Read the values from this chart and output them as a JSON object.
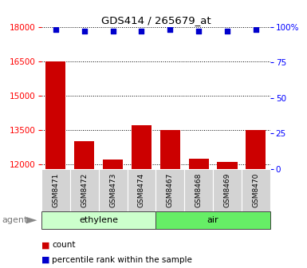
{
  "title": "GDS414 / 265679_at",
  "samples": [
    "GSM8471",
    "GSM8472",
    "GSM8473",
    "GSM8474",
    "GSM8467",
    "GSM8468",
    "GSM8469",
    "GSM8470"
  ],
  "counts": [
    16500,
    13000,
    12200,
    13700,
    13500,
    12250,
    12100,
    13500
  ],
  "percentile_ranks": [
    98,
    97,
    97,
    97,
    98,
    97,
    97,
    98
  ],
  "groups": [
    {
      "label": "ethylene",
      "indices": [
        0,
        1,
        2,
        3
      ],
      "color": "#ccffcc"
    },
    {
      "label": "air",
      "indices": [
        4,
        5,
        6,
        7
      ],
      "color": "#66ee66"
    }
  ],
  "ylim_left": [
    11800,
    18000
  ],
  "ylim_right": [
    0,
    100
  ],
  "yticks_left": [
    12000,
    13500,
    15000,
    16500,
    18000
  ],
  "yticks_right": [
    0,
    25,
    50,
    75,
    100
  ],
  "bar_color": "#cc0000",
  "dot_color": "#0000cc",
  "bar_width": 0.7,
  "agent_label": "agent",
  "legend_count_label": "count",
  "legend_percentile_label": "percentile rank within the sample",
  "background_color": "#ffffff"
}
